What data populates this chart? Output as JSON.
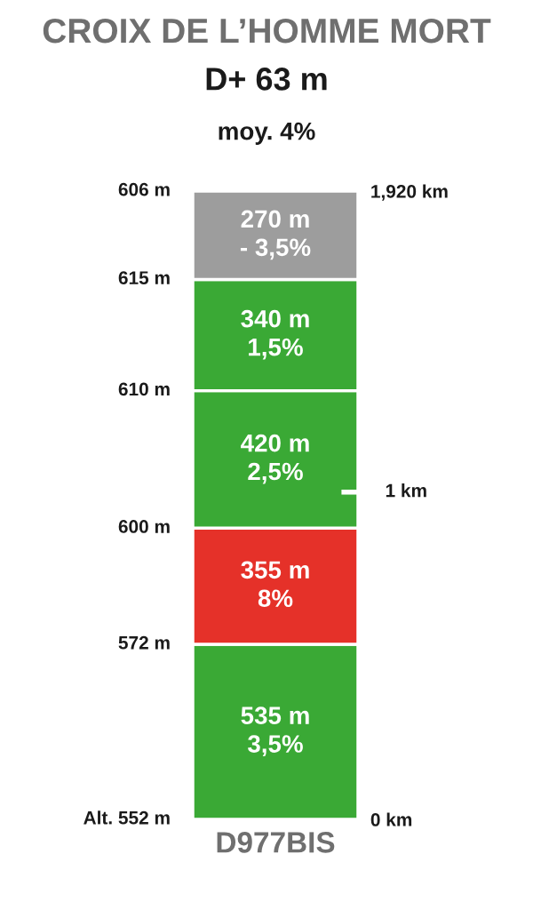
{
  "chart_data": {
    "type": "bar",
    "stacked": true,
    "title": "CROIX DE L’HOMME MORT",
    "subtitle": "D+ 63 m",
    "annotations": [
      "moy. 4%",
      "Alt. 552 m",
      "572 m",
      "600 m",
      "610 m",
      "615 m",
      "606 m"
    ],
    "xlabel": "D977BIS",
    "categories": [
      null
    ],
    "series": [
      {
        "color": "#3aa935",
        "values": [
          535
        ],
        "value_labels": [
          "535 m\n3,5%"
        ]
      },
      {
        "color": "#e53129",
        "values": [
          355
        ],
        "value_labels": [
          "355 m\n8%"
        ]
      },
      {
        "color": "#3aa935",
        "values": [
          420
        ],
        "value_labels": [
          "420 m\n2,5%"
        ]
      },
      {
        "color": "#3aa935",
        "values": [
          340
        ],
        "value_labels": [
          "340 m\n1,5%"
        ]
      },
      {
        "color": "#9d9d9d",
        "values": [
          270
        ],
        "value_labels": [
          "270 m\n- 3,5%"
        ]
      }
    ],
    "ylim": [
      0,
      1920
    ],
    "yticks": [
      {
        "value": 0,
        "label": "0 km"
      },
      {
        "value": 1920,
        "label": "1,920 km"
      }
    ],
    "ref_lines": [
      {
        "axis": "y",
        "value": 1000,
        "label": "1 km",
        "color": "#ffffff"
      }
    ],
    "grid": false,
    "legend": false
  }
}
